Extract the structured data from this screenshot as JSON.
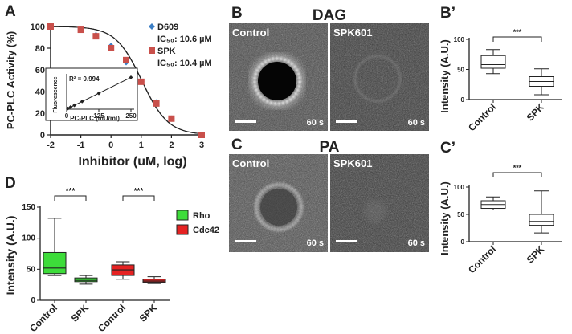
{
  "chart_data": [
    {
      "id": "A",
      "panel_letter": "A",
      "type": "line",
      "xlabel": "Inhibitor (uM, log)",
      "ylabel": "PC-PLC Activity (%)",
      "xlim": [
        -2,
        3
      ],
      "ylim": [
        0,
        100
      ],
      "x_ticks": [
        "-2",
        "-1",
        "0",
        "1",
        "2",
        "3"
      ],
      "y_ticks": [
        "0",
        "20",
        "40",
        "60",
        "80",
        "100"
      ],
      "colors": {
        "D609": "#3b7dc4",
        "SPK": "#c9504b",
        "curve": "#222222"
      },
      "series": [
        {
          "name": "D609",
          "marker": "diamond",
          "x": [
            -2,
            -1,
            -0.5,
            0,
            0.5,
            1,
            1.5,
            2,
            3
          ],
          "y": [
            100,
            97,
            92,
            82,
            67,
            49,
            30,
            15,
            0
          ]
        },
        {
          "name": "SPK",
          "marker": "square",
          "x": [
            -2,
            -1,
            -0.5,
            0,
            0.5,
            1,
            1.5,
            2,
            3
          ],
          "y": [
            100,
            97,
            91,
            80,
            69,
            49,
            29,
            15,
            0
          ]
        }
      ],
      "legend": [
        {
          "name": "D609",
          "ic50": "IC₅₀: 10.6 µM",
          "marker": "diamond"
        },
        {
          "name": "SPK",
          "ic50": "IC₅₀: 10.4 µM",
          "marker": "square"
        }
      ],
      "inset": {
        "type": "scatter",
        "xlabel": "PC-PLC (mU/ml)",
        "ylabel": "Fluorescence",
        "r2_label": "R² = 0.994",
        "x_ticks": [
          "0",
          "125",
          "250"
        ],
        "xlim": [
          0,
          250
        ],
        "points": [
          {
            "x": 5,
            "y": 2
          },
          {
            "x": 15,
            "y": 6
          },
          {
            "x": 30,
            "y": 11
          },
          {
            "x": 60,
            "y": 22
          },
          {
            "x": 125,
            "y": 45
          },
          {
            "x": 250,
            "y": 90
          }
        ]
      }
    },
    {
      "id": "B-prime",
      "panel_letter": "B’",
      "type": "boxplot",
      "ylabel": "Intensity (A.U.)",
      "ylim": [
        0,
        100
      ],
      "y_ticks": [
        "0",
        "50",
        "100"
      ],
      "categories": [
        "Control",
        "SPK"
      ],
      "boxes": [
        {
          "name": "Control",
          "min": 43,
          "q1": 52,
          "median": 58,
          "q3": 73,
          "max": 83
        },
        {
          "name": "SPK",
          "min": 8,
          "q1": 22,
          "median": 30,
          "q3": 38,
          "max": 51
        }
      ],
      "significance": "***"
    },
    {
      "id": "C-prime",
      "panel_letter": "C’",
      "type": "boxplot",
      "ylabel": "Intensity (A.U.)",
      "ylim": [
        0,
        100
      ],
      "y_ticks": [
        "0",
        "50",
        "100"
      ],
      "categories": [
        "Control",
        "SPK"
      ],
      "boxes": [
        {
          "name": "Control",
          "min": 58,
          "q1": 61,
          "median": 68,
          "q3": 75,
          "max": 82
        },
        {
          "name": "SPK",
          "min": 16,
          "q1": 30,
          "median": 37,
          "q3": 50,
          "max": 93
        }
      ],
      "significance": "***"
    },
    {
      "id": "D",
      "panel_letter": "D",
      "type": "boxplot",
      "ylabel": "Intensity (A.U.)",
      "ylim": [
        0,
        150
      ],
      "y_ticks": [
        "0",
        "50",
        "100",
        "150"
      ],
      "categories": [
        "Control",
        "SPK",
        "Control",
        "SPK"
      ],
      "colors": {
        "Rho": "#3ddc3a",
        "Cdc42": "#e52222"
      },
      "legend": [
        "Rho",
        "Cdc42"
      ],
      "boxes": [
        {
          "name": "Control",
          "group": "Rho",
          "min": 40,
          "q1": 43,
          "median": 52,
          "q3": 77,
          "max": 132
        },
        {
          "name": "SPK",
          "group": "Rho",
          "min": 26,
          "q1": 30,
          "median": 32,
          "q3": 36,
          "max": 40
        },
        {
          "name": "Control",
          "group": "Cdc42",
          "min": 34,
          "q1": 40,
          "median": 49,
          "q3": 57,
          "max": 62
        },
        {
          "name": "SPK",
          "group": "Cdc42",
          "min": 27,
          "q1": 29,
          "median": 31,
          "q3": 34,
          "max": 38
        }
      ],
      "significance": [
        "***",
        "***"
      ]
    }
  ],
  "micrographs": {
    "B": {
      "panel_letter": "B",
      "title": "DAG",
      "left": {
        "label": "Control",
        "time": "60 s",
        "ring": "bright"
      },
      "right": {
        "label": "SPK601",
        "time": "60 s",
        "ring": "faint"
      }
    },
    "C": {
      "panel_letter": "C",
      "title": "PA",
      "left": {
        "label": "Control",
        "time": "60 s",
        "ring": "bright"
      },
      "right": {
        "label": "SPK601",
        "time": "60 s",
        "ring": "faint"
      }
    }
  }
}
